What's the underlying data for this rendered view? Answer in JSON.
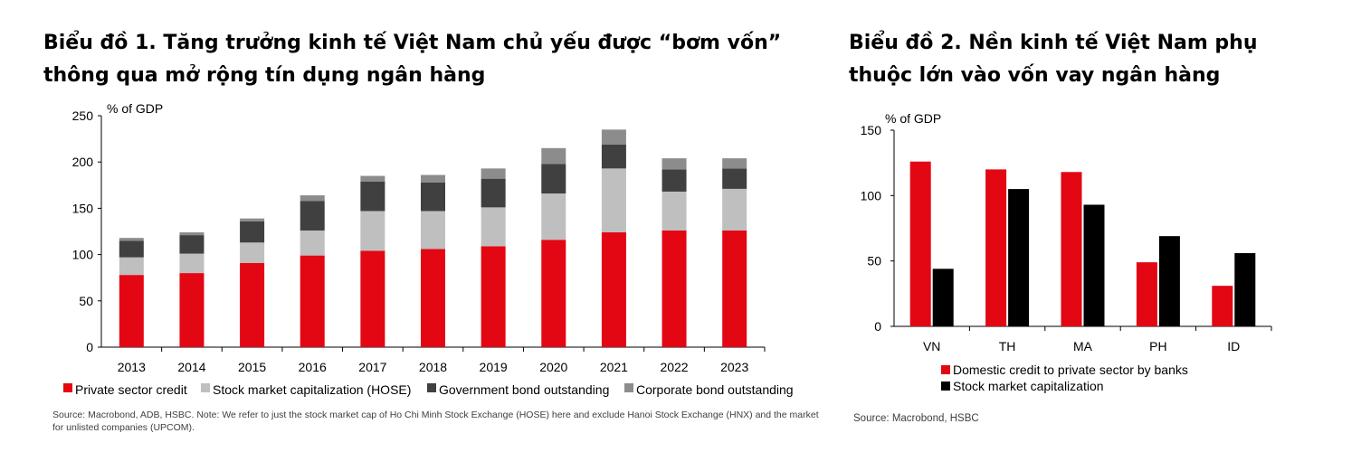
{
  "chart1": {
    "title": "Biểu đồ 1. Tăng trưởng kinh tế Việt Nam chủ yếu được “bơm vốn” thông qua mở rộng tín dụng ngân hàng",
    "source": "Source: Macrobond, ADB, HSBC. Note: We refer to just the stock market cap of Ho Chi Minh Stock Exchange (HOSE) here and exclude Hanoi Stock Exchange (HNX) and the market for unlisted companies (UPCOM)."
  },
  "chart2": {
    "title": "Biểu đồ 2. Nền kinh tế Việt Nam phụ thuộc lớn vào vốn vay ngân hàng",
    "source": "Source: Macrobond, HSBC"
  },
  "chart_data": [
    {
      "type": "bar",
      "stacked": true,
      "title": "Biểu đồ 1. Tăng trưởng kinh tế Việt Nam chủ yếu được “bơm vốn” thông qua mở rộng tín dụng ngân hàng",
      "ylabel": "% of GDP",
      "xlabel": "",
      "ylim": [
        0,
        250
      ],
      "yticks": [
        0,
        50,
        100,
        150,
        200,
        250
      ],
      "categories": [
        "2013",
        "2014",
        "2015",
        "2016",
        "2017",
        "2018",
        "2019",
        "2020",
        "2021",
        "2022",
        "2023"
      ],
      "series": [
        {
          "name": "Private sector credit",
          "color": "#e30613",
          "values": [
            78,
            80,
            91,
            99,
            104,
            106,
            109,
            116,
            124,
            126,
            126
          ]
        },
        {
          "name": "Stock market capitalization (HOSE)",
          "color": "#bfbfbf",
          "values": [
            19,
            21,
            22,
            27,
            43,
            41,
            42,
            50,
            69,
            42,
            45
          ]
        },
        {
          "name": "Government bond outstanding",
          "color": "#404040",
          "values": [
            18,
            20,
            23,
            32,
            32,
            31,
            31,
            32,
            26,
            24,
            22
          ]
        },
        {
          "name": "Corporate bond outstanding",
          "color": "#8c8c8c",
          "values": [
            3,
            3,
            3,
            6,
            6,
            8,
            11,
            17,
            16,
            12,
            11
          ]
        }
      ],
      "legend": "bottom"
    },
    {
      "type": "bar",
      "stacked": false,
      "title": "Biểu đồ 2. Nền kinh tế Việt Nam phụ thuộc lớn vào vốn vay ngân hàng",
      "ylabel": "% of GDP",
      "xlabel": "",
      "ylim": [
        0,
        150
      ],
      "yticks": [
        0,
        50,
        100,
        150
      ],
      "categories": [
        "VN",
        "TH",
        "MA",
        "PH",
        "ID"
      ],
      "series": [
        {
          "name": "Domestic credit to private sector by banks",
          "color": "#e30613",
          "values": [
            126,
            120,
            118,
            49,
            31
          ]
        },
        {
          "name": "Stock market capitalization",
          "color": "#000000",
          "values": [
            44,
            105,
            93,
            69,
            56
          ]
        }
      ],
      "legend": "bottom"
    }
  ]
}
